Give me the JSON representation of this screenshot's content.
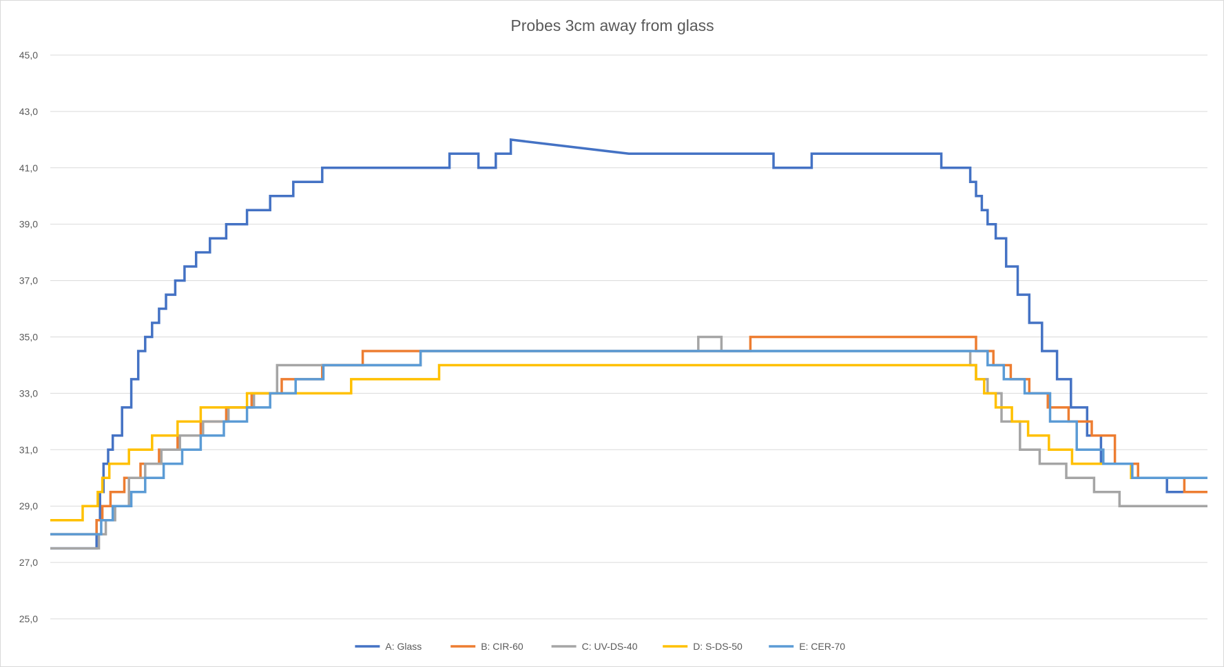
{
  "chart_data": {
    "type": "line",
    "title": "Probes 3cm away from glass",
    "xlabel": "",
    "ylabel": "",
    "ylim": [
      25,
      45
    ],
    "yticks": [
      "25,0",
      "27,0",
      "29,0",
      "31,0",
      "33,0",
      "35,0",
      "37,0",
      "39,0",
      "41,0",
      "43,0",
      "45,0"
    ],
    "xlim": [
      0,
      100
    ],
    "grid": true,
    "legend_position": "bottom",
    "series": [
      {
        "name": "A: Glass",
        "color": "#4472c4",
        "x": [
          0,
          4.0,
          4.0,
          4.3,
          4.3,
          4.6,
          4.6,
          5.0,
          5.0,
          5.4,
          5.4,
          6.2,
          6.2,
          7.0,
          7.0,
          7.6,
          7.6,
          8.2,
          8.2,
          8.8,
          8.8,
          9.4,
          9.4,
          10.0,
          10.0,
          10.8,
          10.8,
          11.6,
          11.6,
          12.6,
          12.6,
          13.8,
          13.8,
          15.2,
          15.2,
          17.0,
          17.0,
          19.0,
          19.0,
          21.0,
          21.0,
          23.5,
          23.5,
          34.5,
          34.5,
          37.0,
          37.0,
          38.5,
          38.5,
          39.8,
          39.8,
          50.0,
          50.0,
          50.3,
          50.3,
          62.5,
          62.5,
          65.8,
          65.8,
          77.0,
          77.0,
          79.5,
          79.5,
          80.0,
          80.0,
          80.5,
          80.5,
          81.0,
          81.0,
          81.7,
          81.7,
          82.6,
          82.6,
          83.6,
          83.6,
          84.6,
          84.6,
          85.7,
          85.7,
          87.0,
          87.0,
          88.2,
          88.2,
          89.6,
          89.6,
          90.8,
          90.8,
          93.5,
          93.5,
          96.5,
          96.5,
          100
        ],
        "values": [
          27.5,
          27.5,
          28.5,
          28.5,
          29.5,
          29.5,
          30.5,
          30.5,
          31.0,
          31.0,
          31.5,
          31.5,
          32.5,
          32.5,
          33.5,
          33.5,
          34.5,
          34.5,
          35.0,
          35.0,
          35.5,
          35.5,
          36.0,
          36.0,
          36.5,
          36.5,
          37.0,
          37.0,
          37.5,
          37.5,
          38.0,
          38.0,
          38.5,
          38.5,
          39.0,
          39.0,
          39.5,
          39.5,
          40.0,
          40.0,
          40.5,
          40.5,
          41.0,
          41.0,
          41.5,
          41.5,
          41.0,
          41.0,
          41.5,
          41.5,
          42.0,
          41.5,
          41.5,
          41.5,
          41.5,
          41.5,
          41.0,
          41.0,
          41.5,
          41.5,
          41.0,
          41.0,
          40.5,
          40.5,
          40.0,
          40.0,
          39.5,
          39.5,
          39.0,
          39.0,
          38.5,
          38.5,
          37.5,
          37.5,
          36.5,
          36.5,
          35.5,
          35.5,
          34.5,
          34.5,
          33.5,
          33.5,
          32.5,
          32.5,
          31.5,
          31.5,
          30.5,
          30.5,
          30.0,
          30.0,
          29.5,
          29.5
        ]
      },
      {
        "name": "B: CIR-60",
        "color": "#ed7d31",
        "x": [
          0,
          4.0,
          4.0,
          4.5,
          4.5,
          5.2,
          5.2,
          6.4,
          6.4,
          7.8,
          7.8,
          9.4,
          9.4,
          11.0,
          11.0,
          13.0,
          13.0,
          15.2,
          15.2,
          17.4,
          17.4,
          20.0,
          20.0,
          23.5,
          23.5,
          27.0,
          27.0,
          32.0,
          32.0,
          60.5,
          60.5,
          80.0,
          80.0,
          81.5,
          81.5,
          83.0,
          83.0,
          84.6,
          84.6,
          86.2,
          86.2,
          88.0,
          88.0,
          90.0,
          90.0,
          92.0,
          92.0,
          94.0,
          94.0,
          98.0,
          98.0,
          100
        ],
        "values": [
          28.0,
          28.0,
          28.5,
          28.5,
          29.0,
          29.0,
          29.5,
          29.5,
          30.0,
          30.0,
          30.5,
          30.5,
          31.0,
          31.0,
          31.5,
          31.5,
          32.0,
          32.0,
          32.5,
          32.5,
          33.0,
          33.0,
          33.5,
          33.5,
          34.0,
          34.0,
          34.5,
          34.5,
          34.5,
          34.5,
          35.0,
          35.0,
          34.5,
          34.5,
          34.0,
          34.0,
          33.5,
          33.5,
          33.0,
          33.0,
          32.5,
          32.5,
          32.0,
          32.0,
          31.5,
          31.5,
          30.5,
          30.5,
          30.0,
          30.0,
          29.5,
          29.5
        ]
      },
      {
        "name": "C: UV-DS-40",
        "color": "#a5a5a5",
        "x": [
          0,
          4.2,
          4.2,
          4.8,
          4.8,
          5.6,
          5.6,
          6.8,
          6.8,
          8.2,
          8.2,
          9.6,
          9.6,
          11.2,
          11.2,
          13.2,
          13.2,
          15.4,
          15.4,
          17.6,
          17.6,
          19.6,
          19.6,
          23.6,
          23.6,
          32.0,
          32.0,
          56.0,
          56.0,
          58.0,
          58.0,
          79.5,
          79.5,
          80.0,
          80.0,
          81.0,
          81.0,
          82.2,
          82.2,
          83.8,
          83.8,
          85.5,
          85.5,
          87.8,
          87.8,
          90.2,
          90.2,
          92.4,
          92.4,
          95.0,
          95.0,
          100
        ],
        "values": [
          27.5,
          27.5,
          28.0,
          28.0,
          28.5,
          28.5,
          29.0,
          29.0,
          30.0,
          30.0,
          30.5,
          30.5,
          31.0,
          31.0,
          31.5,
          31.5,
          32.0,
          32.0,
          32.5,
          32.5,
          33.0,
          33.0,
          34.0,
          34.0,
          34.0,
          34.0,
          34.5,
          34.5,
          35.0,
          35.0,
          34.5,
          34.5,
          34.0,
          34.0,
          33.5,
          33.5,
          33.0,
          33.0,
          32.0,
          32.0,
          31.0,
          31.0,
          30.5,
          30.5,
          30.0,
          30.0,
          29.5,
          29.5,
          29.0,
          29.0,
          29.0,
          29.0
        ]
      },
      {
        "name": "D: S-DS-50",
        "color": "#ffc000",
        "x": [
          0,
          2.8,
          2.8,
          4.1,
          4.1,
          4.5,
          4.5,
          5.1,
          5.1,
          6.8,
          6.8,
          8.8,
          8.8,
          11.0,
          11.0,
          13.0,
          13.0,
          15.0,
          15.0,
          17.0,
          17.0,
          19.0,
          19.0,
          26.0,
          26.0,
          33.6,
          33.6,
          59.0,
          59.0,
          60.5,
          60.5,
          67.0,
          67.0,
          80.0,
          80.0,
          80.7,
          80.7,
          81.7,
          81.7,
          83.1,
          83.1,
          84.5,
          84.5,
          86.3,
          86.3,
          88.3,
          88.3,
          90.7,
          90.7,
          93.4,
          93.4,
          95.5,
          95.5,
          100
        ],
        "values": [
          28.5,
          28.5,
          29.0,
          29.0,
          29.5,
          29.5,
          30.0,
          30.0,
          30.5,
          30.5,
          31.0,
          31.0,
          31.5,
          31.5,
          32.0,
          32.0,
          32.5,
          32.5,
          32.5,
          32.5,
          33.0,
          33.0,
          33.0,
          33.0,
          33.5,
          33.5,
          34.0,
          34.0,
          34.0,
          34.0,
          34.0,
          34.0,
          34.0,
          34.0,
          33.5,
          33.5,
          33.0,
          33.0,
          32.5,
          32.5,
          32.0,
          32.0,
          31.5,
          31.5,
          31.0,
          31.0,
          30.5,
          30.5,
          30.5,
          30.5,
          30.0,
          30.0,
          30.0,
          30.0
        ]
      },
      {
        "name": "E: CER-70",
        "color": "#5b9bd5",
        "x": [
          0,
          4.4,
          4.4,
          5.4,
          5.4,
          7.0,
          7.0,
          8.2,
          8.2,
          9.8,
          9.8,
          11.4,
          11.4,
          13.0,
          13.0,
          15.0,
          15.0,
          17.0,
          17.0,
          19.0,
          19.0,
          21.2,
          21.2,
          23.6,
          23.6,
          32.0,
          32.0,
          81.0,
          81.0,
          82.4,
          82.4,
          84.2,
          84.2,
          86.4,
          86.4,
          88.7,
          88.7,
          91.0,
          91.0,
          93.5,
          93.5,
          100
        ],
        "values": [
          28.0,
          28.0,
          28.5,
          28.5,
          29.0,
          29.0,
          29.5,
          29.5,
          30.0,
          30.0,
          30.5,
          30.5,
          31.0,
          31.0,
          31.5,
          31.5,
          32.0,
          32.0,
          32.5,
          32.5,
          33.0,
          33.0,
          33.5,
          33.5,
          34.0,
          34.0,
          34.5,
          34.5,
          34.0,
          34.0,
          33.5,
          33.5,
          33.0,
          33.0,
          32.0,
          32.0,
          31.0,
          31.0,
          30.5,
          30.5,
          30.0,
          30.0
        ]
      }
    ]
  }
}
